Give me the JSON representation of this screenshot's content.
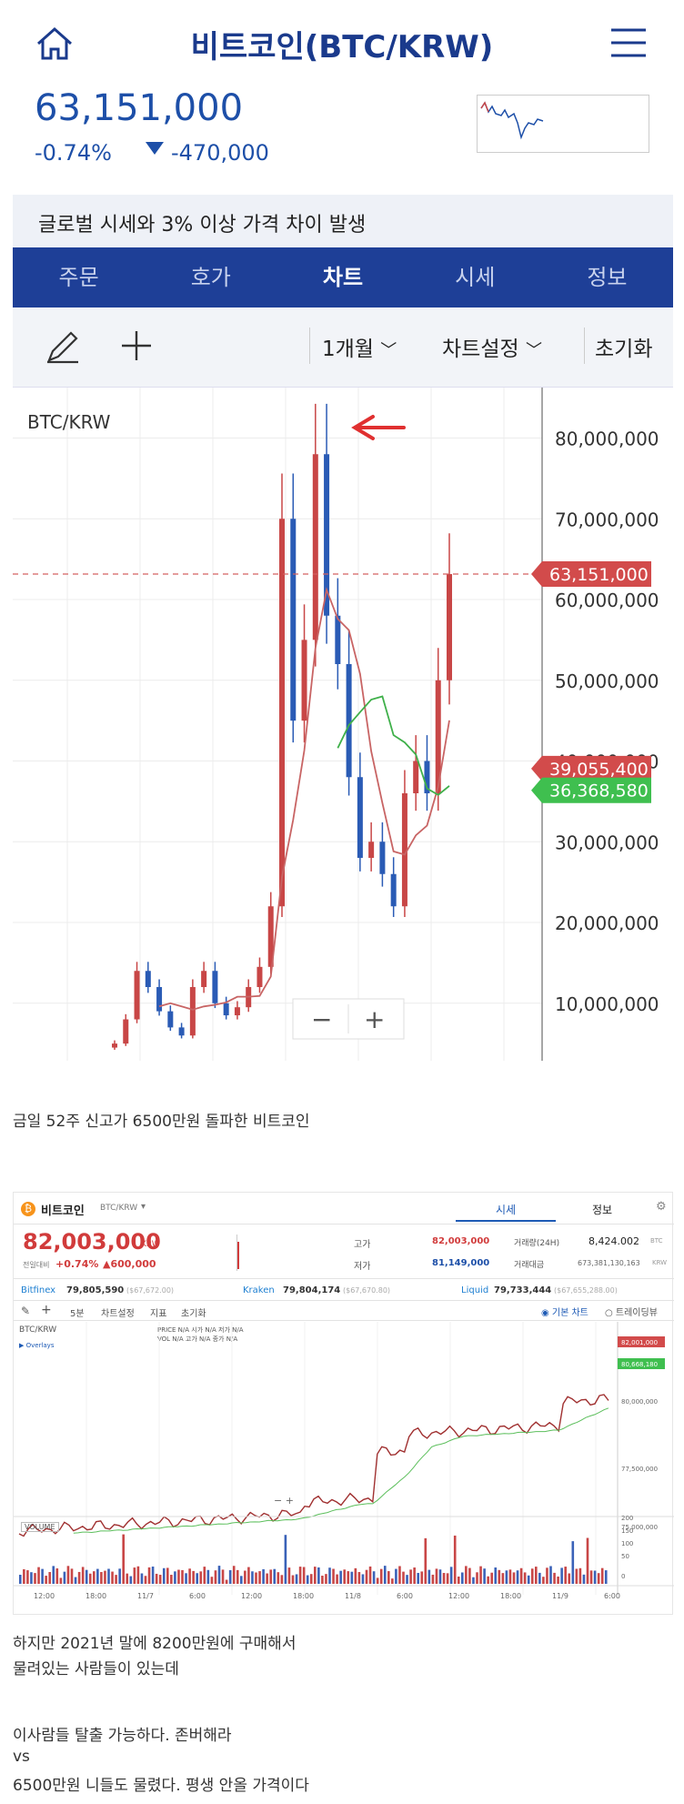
{
  "header": {
    "title": "비트코인(BTC/KRW)",
    "home_icon": "home-icon",
    "menu_icon": "hamburger-menu-icon"
  },
  "ticker": {
    "price": "63,151,000",
    "change_pct": "-0.74%",
    "change_abs": "-470,000",
    "direction_icon": "triangle-down-icon",
    "color": "#1d4fa8"
  },
  "notice": "글로벌 시세와 3% 이상 가격 차이 발생",
  "tabs": [
    "주문",
    "호가",
    "차트",
    "시세",
    "정보"
  ],
  "active_tab": "차트",
  "toolbar": {
    "period": "1개월",
    "settings": "차트설정",
    "reset": "초기화"
  },
  "chart1": {
    "symbol": "BTC/KRW",
    "yticks": [
      "80,000,000",
      "70,000,000",
      "60,000,000",
      "50,000,000",
      "40,000,000",
      "30,000,000",
      "20,000,000",
      "10,000,000"
    ],
    "current_label": "63,151,000",
    "ma1_label": "39,055,400",
    "ma2_label": "36,368,580",
    "zoom_out": "−",
    "zoom_in": "+"
  },
  "chart_data": {
    "type": "candlestick",
    "ylim": [
      4000000,
      84000000
    ],
    "ticks": [
      10000000,
      20000000,
      30000000,
      40000000,
      50000000,
      60000000,
      70000000,
      80000000
    ],
    "current": 63151000,
    "ma1": 39055400,
    "ma2": 36368580,
    "closes": [
      5000000,
      8000000,
      14000000,
      12000000,
      9000000,
      7000000,
      6000000,
      12000000,
      14000000,
      10000000,
      8500000,
      9500000,
      12000000,
      14500000,
      22000000,
      70000000,
      45000000,
      55000000,
      78000000,
      58000000,
      52000000,
      38000000,
      28000000,
      30000000,
      26000000,
      22000000,
      36000000,
      40000000,
      36000000,
      50000000,
      63151000
    ]
  },
  "caption1": "금일 52주 신고가 6500만원 돌파한 비트코인",
  "app2": {
    "name": "비트코인",
    "pair": "BTC/KRW",
    "tab_price": "시세",
    "tab_info": "정보",
    "price": "82,003,000",
    "unit": "KRW",
    "prev_label": "전일대비",
    "pct": "+0.74%",
    "abs": "▲600,000",
    "high_label": "고가",
    "high": "82,003,000",
    "low_label": "저가",
    "low": "81,149,000",
    "vol_label": "거래량(24H)",
    "vol": "8,424.002",
    "vol_unit": "BTC",
    "amt_label": "거래대금",
    "amt": "673,381,130,163",
    "amt_unit": "KRW",
    "ex1": "Bitfinex",
    "ex1_val": "79,805,590",
    "ex1_sub": "($67,672.00)",
    "ex2": "Kraken",
    "ex2_val": "79,804,174",
    "ex2_sub": "($67,670.80)",
    "ex3": "Liquid",
    "ex3_val": "79,733,444",
    "ex3_sub": "($67,655,288.00)",
    "interval": "5분",
    "chart_settings": "차트설정",
    "indicator": "지표",
    "reset": "초기화",
    "radio1": "기본 차트",
    "radio2": "트레이딩뷰",
    "symbol": "BTC/KRW",
    "overlays": "Overlays",
    "ohlc": "PRICE  N/A   시가  N/A   저가  N/A",
    "ohlc2": "VOL  N/A   고가  N/A   종가  N/A",
    "ylabels": [
      "82,000,000",
      "80,000,000",
      "77,500,000",
      "75,000,000"
    ],
    "tag1": "82,001,000",
    "tag2": "80,668,180",
    "volume": "VOLUME",
    "vol_ticks": [
      "200",
      "150",
      "100",
      "50",
      "0"
    ],
    "xlabels": [
      "12:00",
      "18:00",
      "11/7",
      "6:00",
      "12:00",
      "18:00",
      "11/8",
      "6:00",
      "12:00",
      "18:00",
      "11/9",
      "6:00"
    ]
  },
  "caption2": "하지만 2021년 말에 8200만원에 구매해서",
  "caption3": "물려있는 사람들이 있는데",
  "caption4": "이사람들 탈출 가능하다. 존버해라",
  "caption5": "vs",
  "caption6": "6500만원 니들도 물렸다. 평생 안올 가격이다"
}
